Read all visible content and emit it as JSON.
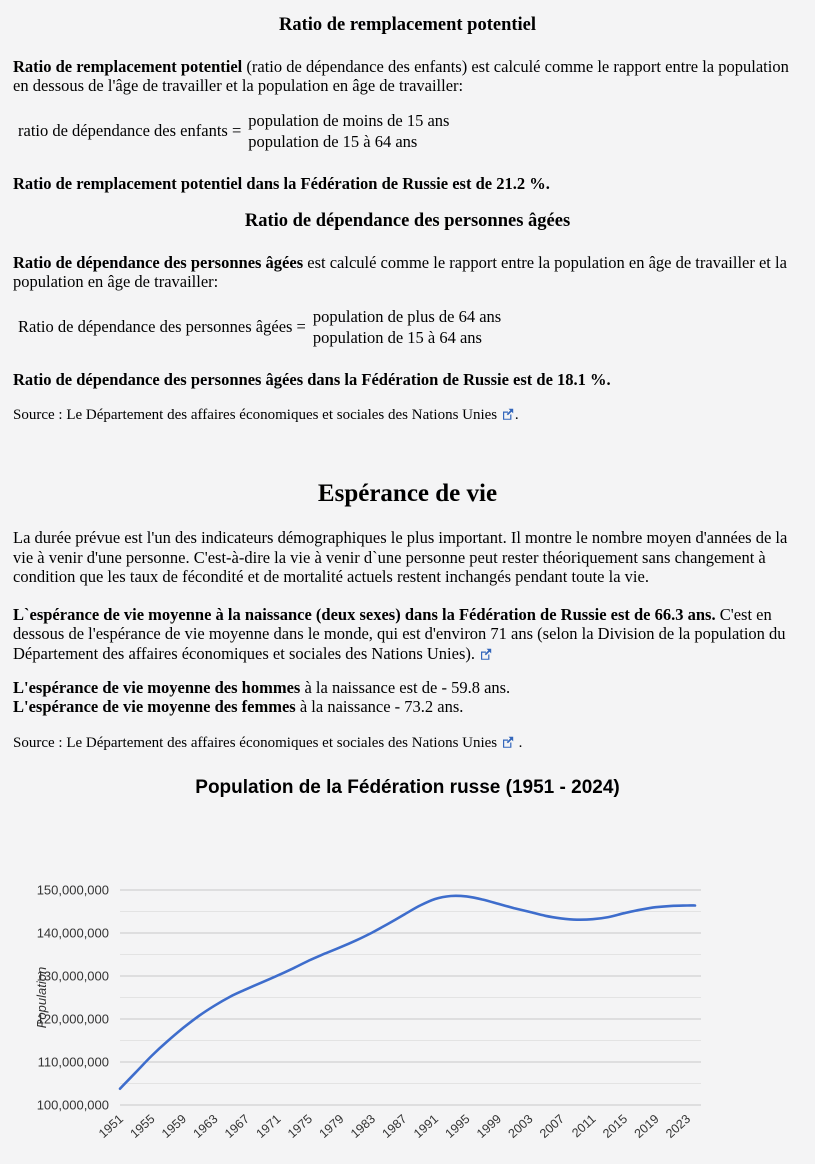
{
  "sections": {
    "replacement": {
      "title": "Ratio de remplacement potentiel",
      "term": "Ratio de remplacement potentiel",
      "definition": " (ratio de dépendance des enfants) est calculé comme le rapport entre la population en dessous de l'âge de travailler et la population en âge de travailler:",
      "formula_lhs": "ratio de dépendance des enfants =",
      "formula_numerator": "population de moins de 15 ans",
      "formula_denominator": "population de 15 à 64 ans",
      "result": "Ratio de remplacement potentiel dans la Fédération de Russie est de 21.2 %."
    },
    "old_age": {
      "title": "Ratio de dépendance des personnes âgées",
      "term": "Ratio de dépendance des personnes âgées",
      "definition": " est calculé comme le rapport entre la population en âge de travailler et la population en âge de travailler:",
      "formula_lhs": "Ratio de dépendance des personnes âgées =",
      "formula_numerator": "population de plus de 64 ans",
      "formula_denominator": "population de 15 à 64 ans",
      "result": "Ratio de dépendance des personnes âgées dans la Fédération de Russie est de 18.1 %.",
      "source_text": "Source : Le Département des affaires économiques et sociales des Nations Unies",
      "source_suffix": "."
    },
    "life_expectancy": {
      "title": "Espérance de vie",
      "paragraph": "La durée prévue est l'un des indicateurs démographiques le plus important. Il montre le nombre moyen d'années de la vie à venir d'une personne. C'est-à-dire la vie à venir d`une personne peut rester théoriquement sans changement à condition que les taux de fécondité et de mortalité actuels restent inchangés pendant toute la vie.",
      "average_bold": "L`espérance de vie moyenne à la naissance (deux sexes) dans la Fédération de Russie est de 66.3 ans.",
      "average_rest": " C'est en dessous de l'espérance de vie moyenne dans le monde, qui est d'environ 71 ans (selon la Division de la population du Département des affaires économiques et sociales des Nations Unies). ",
      "men_bold": "L'espérance de vie moyenne des hommes",
      "men_rest": " à la naissance est de - 59.8 ans.",
      "women_bold": "L'espérance de vie moyenne des femmes",
      "women_rest": " à la naissance - 73.2 ans.",
      "source_text": "Source : Le Département des affaires économiques et sociales des Nations Unies",
      "source_suffix": " ."
    }
  },
  "icons": {
    "external_link_color": "#3366bb"
  },
  "chart_data": {
    "type": "line",
    "title": "Population de la Fédération russe (1951 - 2024)",
    "xlabel": "",
    "ylabel": "Population",
    "legend": "none",
    "grid": true,
    "line_color": "#3e6dcc",
    "xlim": [
      1951,
      2024
    ],
    "ylim": [
      100000000,
      150000000
    ],
    "x_ticks": [
      1951,
      1955,
      1959,
      1963,
      1967,
      1971,
      1975,
      1979,
      1983,
      1987,
      1991,
      1995,
      1999,
      2003,
      2007,
      2011,
      2015,
      2019,
      2023
    ],
    "y_ticks": [
      100000000,
      110000000,
      120000000,
      130000000,
      140000000,
      150000000
    ],
    "y_minor_ticks": [
      105000000,
      115000000,
      125000000,
      135000000,
      145000000
    ],
    "x": [
      1951,
      1953,
      1955,
      1957,
      1959,
      1961,
      1963,
      1965,
      1967,
      1969,
      1971,
      1973,
      1975,
      1977,
      1979,
      1981,
      1983,
      1985,
      1987,
      1989,
      1991,
      1993,
      1995,
      1997,
      1999,
      2001,
      2003,
      2005,
      2007,
      2009,
      2011,
      2013,
      2015,
      2017,
      2019,
      2021,
      2023,
      2024
    ],
    "values": [
      103800000,
      107600000,
      111400000,
      114800000,
      117900000,
      120700000,
      123100000,
      125200000,
      126900000,
      128500000,
      130100000,
      131800000,
      133600000,
      135200000,
      136700000,
      138300000,
      140100000,
      142100000,
      144200000,
      146300000,
      147900000,
      148600000,
      148500000,
      147800000,
      146800000,
      145800000,
      144900000,
      144000000,
      143400000,
      143100000,
      143200000,
      143700000,
      144600000,
      145400000,
      146000000,
      146300000,
      146400000,
      146400000
    ]
  }
}
